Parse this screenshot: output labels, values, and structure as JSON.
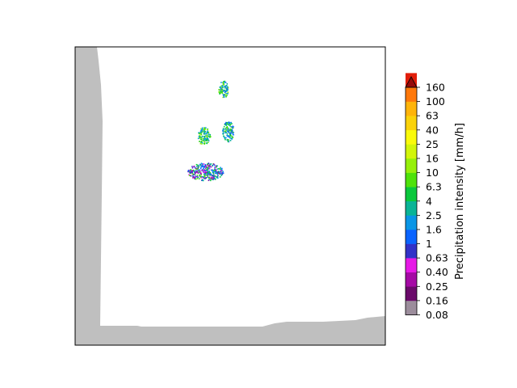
{
  "chart_data": {
    "type": "heatmap",
    "title": "",
    "xlabel": "",
    "ylabel": "",
    "colorbar": {
      "label": "Precipitation intensity [mm/h]",
      "extend": "max",
      "ticks": [
        "0.08",
        "0.16",
        "0.25",
        "0.40",
        "0.63",
        "1",
        "1.6",
        "2.5",
        "4",
        "6.3",
        "10",
        "16",
        "25",
        "40",
        "63",
        "100",
        "160"
      ],
      "colors": [
        "#9c8d9c",
        "#6b0a6b",
        "#a50aa5",
        "#e619e6",
        "#3232c8",
        "#0a64ff",
        "#0a96e6",
        "#0ab496",
        "#0ac83c",
        "#4ee20a",
        "#96f00a",
        "#d2f50a",
        "#fafa0a",
        "#fad20a",
        "#ffb40a",
        "#ff780a",
        "#e11e0a"
      ],
      "extend_color": "#960a0a"
    },
    "no_data_color": "#bfbfbf",
    "precipitation_cells": [
      {
        "area": "north",
        "intensity_range": [
          "1",
          "16"
        ]
      },
      {
        "area": "central-west",
        "intensity_range": [
          "1.6",
          "16"
        ]
      },
      {
        "area": "central-east",
        "intensity_range": [
          "1",
          "10"
        ]
      },
      {
        "area": "south",
        "intensity_range": [
          "0.25",
          "10"
        ]
      }
    ],
    "grid": false,
    "legend": "colorbar-right"
  }
}
